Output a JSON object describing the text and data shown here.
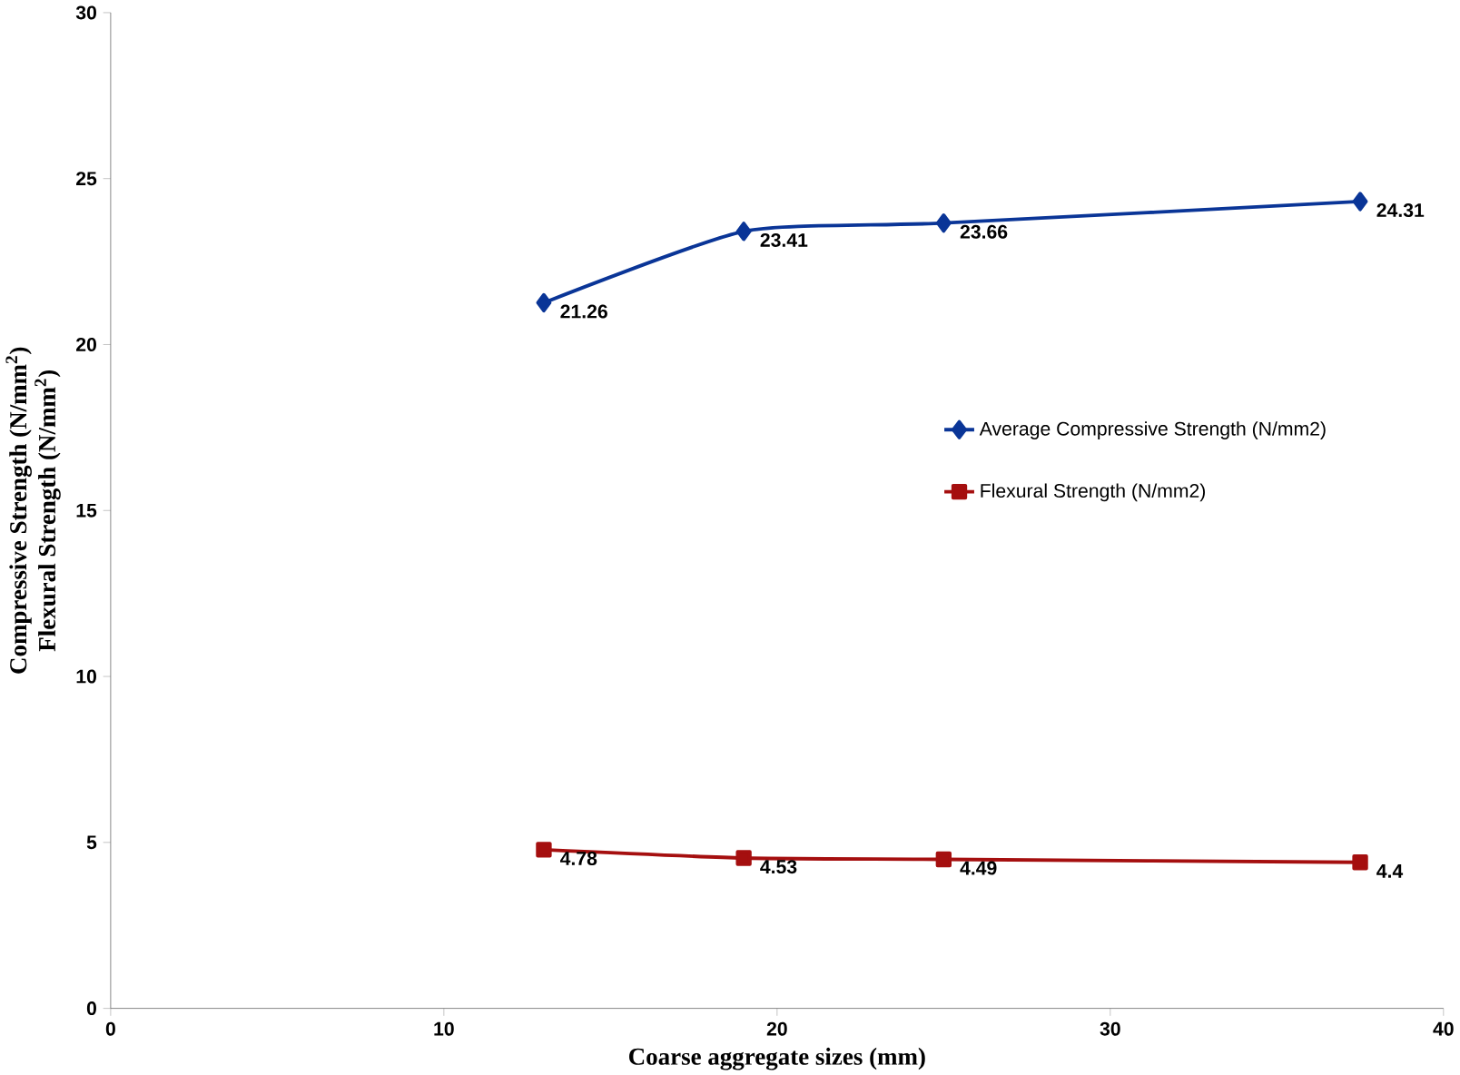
{
  "chart_data": {
    "type": "line",
    "xlabel": "Coarse aggregate sizes (mm)",
    "ylabel": "Compressive Strength  (N/mm$^{2}$)",
    "annotations": [
      "Flexural Strength (N/mm$^{2}$)"
    ],
    "x": [
      13,
      19,
      25,
      37.5
    ],
    "series": [
      {
        "name": "Average Compressive Strength (N/mm2)",
        "color": "#0a3597",
        "marker": "diamond",
        "values": [
          21.26,
          23.41,
          23.66,
          24.31
        ]
      },
      {
        "name": "Flexural Strength (N/mm2)",
        "color": "#a50f0f",
        "marker": "square",
        "values": [
          4.78,
          4.53,
          4.49,
          4.4
        ]
      }
    ],
    "xlim": [
      0,
      40
    ],
    "xticks": [
      0,
      10,
      20,
      30,
      40
    ],
    "ylim": [
      0,
      30
    ],
    "yticks": [
      0,
      5,
      10,
      15,
      20,
      25,
      30
    ],
    "grid": false,
    "legend": "right",
    "data_labels": true,
    "line_style": "solid"
  }
}
